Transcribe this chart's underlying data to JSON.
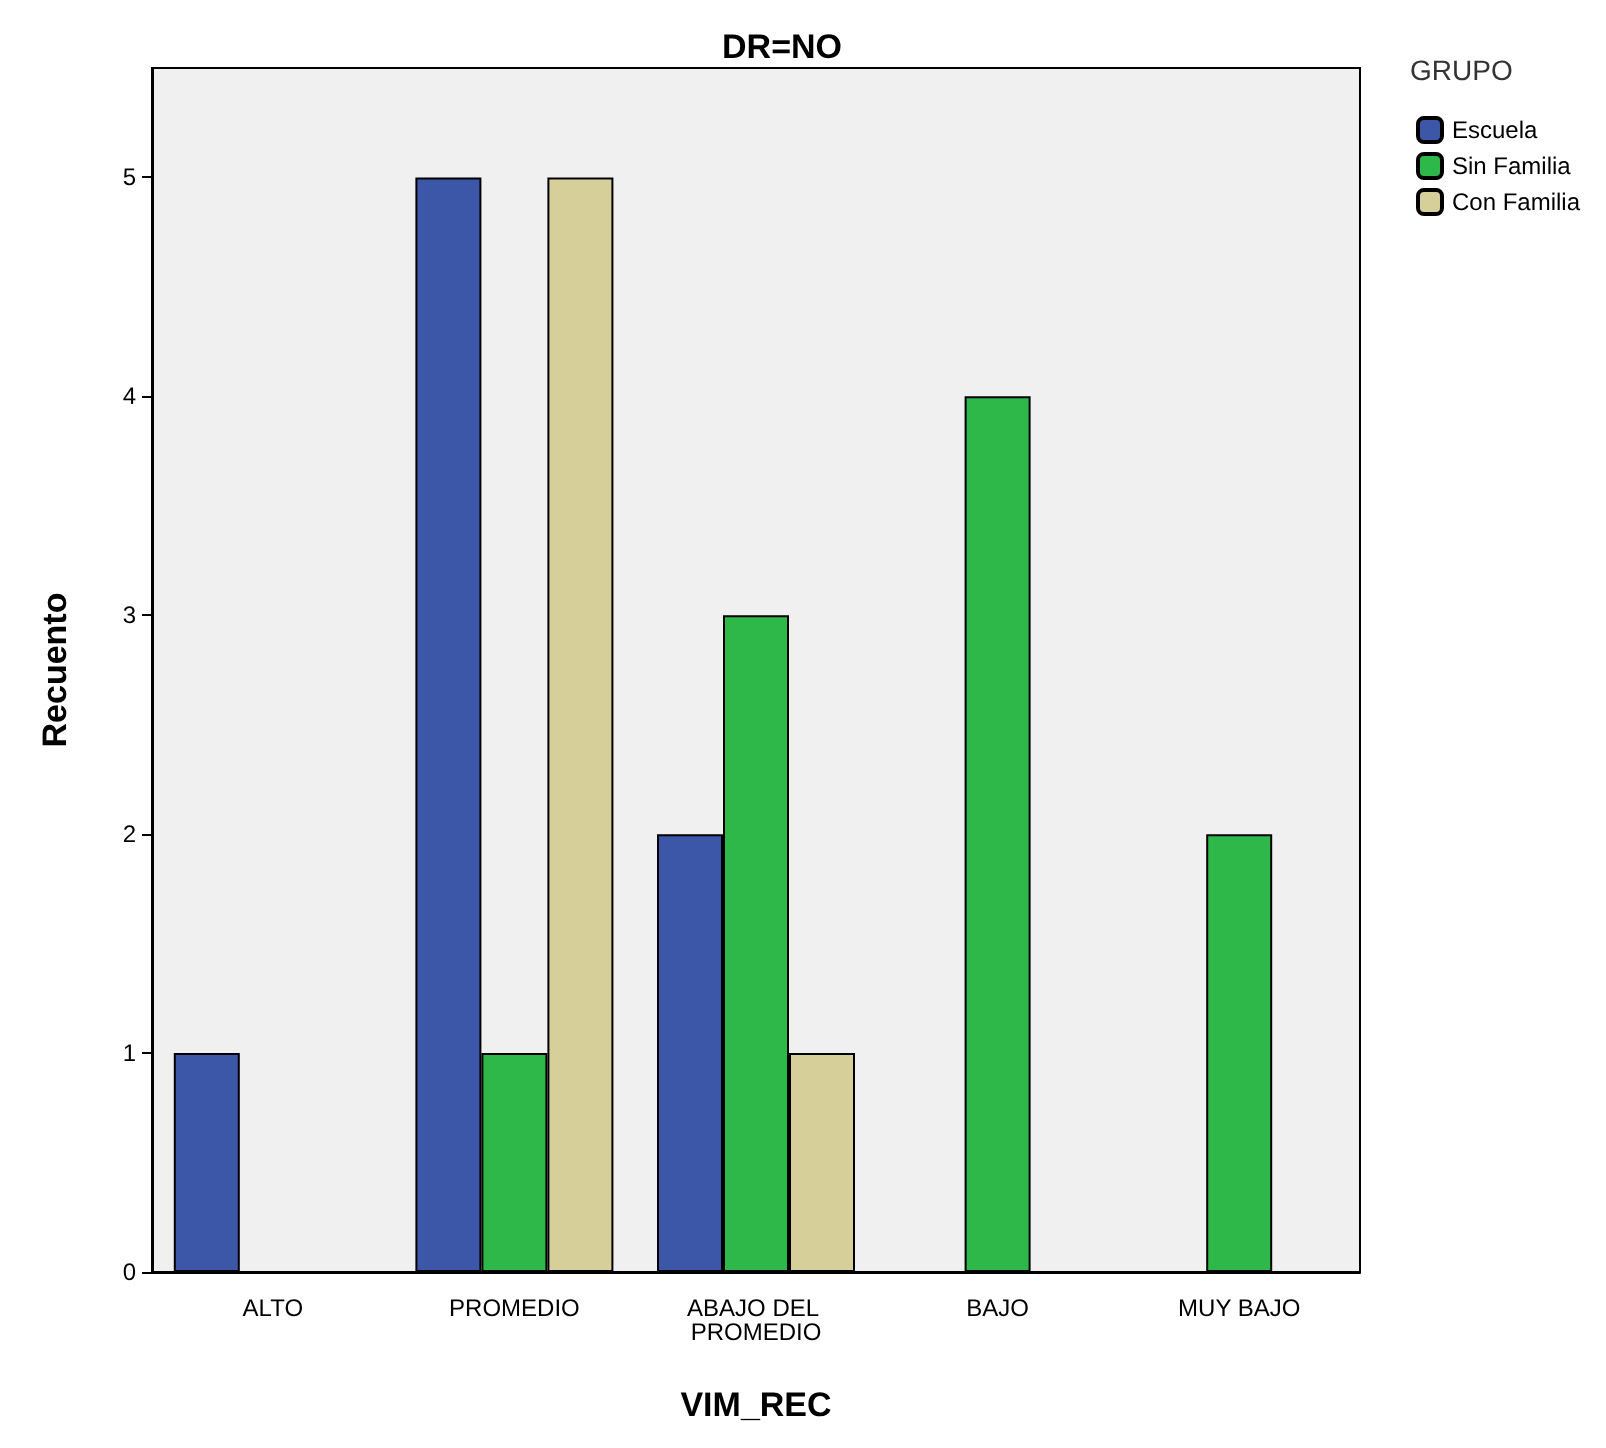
{
  "chart_data": {
    "type": "bar",
    "title": "DR=NO",
    "xlabel": "VIM_REC",
    "ylabel": "Recuento",
    "legend_title": "GRUPO",
    "legend": "top right",
    "grid": false,
    "categories": [
      "ALTO",
      "PROMEDIO",
      "ABAJO DEL PROMEDIO",
      "BAJO",
      "MUY BAJO"
    ],
    "ylim": [
      0,
      5.5
    ],
    "yticks": [
      0,
      1,
      2,
      3,
      4,
      5
    ],
    "series": [
      {
        "name": "Escuela",
        "color": "#3c56a8",
        "values": [
          1,
          5,
          2,
          null,
          null
        ]
      },
      {
        "name": "Sin Familia",
        "color": "#2fb84a",
        "values": [
          null,
          1,
          3,
          4,
          2
        ]
      },
      {
        "name": "Con Familia",
        "color": "#d6cf9a",
        "values": [
          null,
          5,
          1,
          null,
          null
        ]
      }
    ]
  }
}
